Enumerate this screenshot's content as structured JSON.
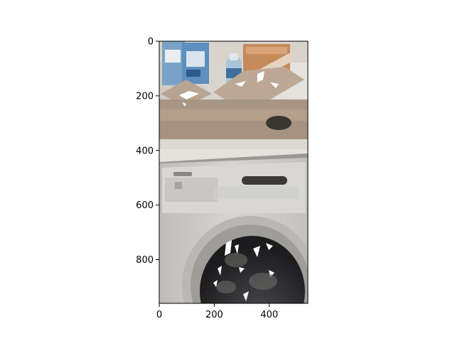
{
  "chart_data": {
    "type": "image",
    "title": "",
    "xlabel": "",
    "ylabel": "",
    "image_extent": {
      "width": 540,
      "height": 960
    },
    "xlim": [
      0,
      540
    ],
    "ylim": [
      960,
      0
    ],
    "x_ticks": [
      {
        "value": 0,
        "label": "0"
      },
      {
        "value": 200,
        "label": "200"
      },
      {
        "value": 400,
        "label": "400"
      }
    ],
    "y_ticks": [
      {
        "value": 0,
        "label": "0"
      },
      {
        "value": 200,
        "label": "200"
      },
      {
        "value": 400,
        "label": "400"
      },
      {
        "value": 600,
        "label": "600"
      },
      {
        "value": 800,
        "label": "800"
      }
    ],
    "grid": false,
    "legend": "none",
    "colors": {
      "background": "#ffffff",
      "axis": "#000000",
      "wall": "#dcdad4",
      "shelf": "#b39f8a",
      "shelf_shadow": "#8c7a68",
      "washer_body": "#c9c8c4",
      "washer_panel": "#d8d7d3",
      "drum_dark": "#2a2a2c",
      "display_window": "#3b3935",
      "product_blue": "#5e8fbe",
      "box_orange": "#c48a5a"
    },
    "depicted_objects": [
      "shelf",
      "detergent-boxes",
      "bottle",
      "washing-machine",
      "washer-control-panel",
      "washer-door-drum"
    ]
  }
}
